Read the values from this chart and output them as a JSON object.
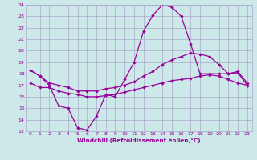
{
  "xlabel": "Windchill (Refroidissement éolien,°C)",
  "xlim": [
    -0.5,
    23.5
  ],
  "ylim": [
    13,
    24
  ],
  "xticks": [
    0,
    1,
    2,
    3,
    4,
    5,
    6,
    7,
    8,
    9,
    10,
    11,
    12,
    13,
    14,
    15,
    16,
    17,
    18,
    19,
    20,
    21,
    22,
    23
  ],
  "yticks": [
    13,
    14,
    15,
    16,
    17,
    18,
    19,
    20,
    21,
    22,
    23,
    24
  ],
  "bg_color": "#cce8e8",
  "grid_color": "#aaaacc",
  "line_color": "#990099",
  "line1_y": [
    18.3,
    17.8,
    17.0,
    15.2,
    15.0,
    13.3,
    13.1,
    14.3,
    16.2,
    16.0,
    17.5,
    19.0,
    21.7,
    23.1,
    24.0,
    23.8,
    23.0,
    20.6,
    18.0,
    18.0,
    18.0,
    18.0,
    18.1,
    17.0
  ],
  "line2_y": [
    18.3,
    17.8,
    17.2,
    17.0,
    16.8,
    16.5,
    16.5,
    16.5,
    16.7,
    16.8,
    17.0,
    17.3,
    17.8,
    18.2,
    18.8,
    19.2,
    19.5,
    19.8,
    19.7,
    19.5,
    18.8,
    18.0,
    18.2,
    17.2
  ],
  "line3_y": [
    17.2,
    16.8,
    16.8,
    16.5,
    16.3,
    16.2,
    16.0,
    16.0,
    16.1,
    16.2,
    16.4,
    16.6,
    16.8,
    17.0,
    17.2,
    17.4,
    17.5,
    17.6,
    17.8,
    17.9,
    17.8,
    17.5,
    17.2,
    17.0
  ]
}
